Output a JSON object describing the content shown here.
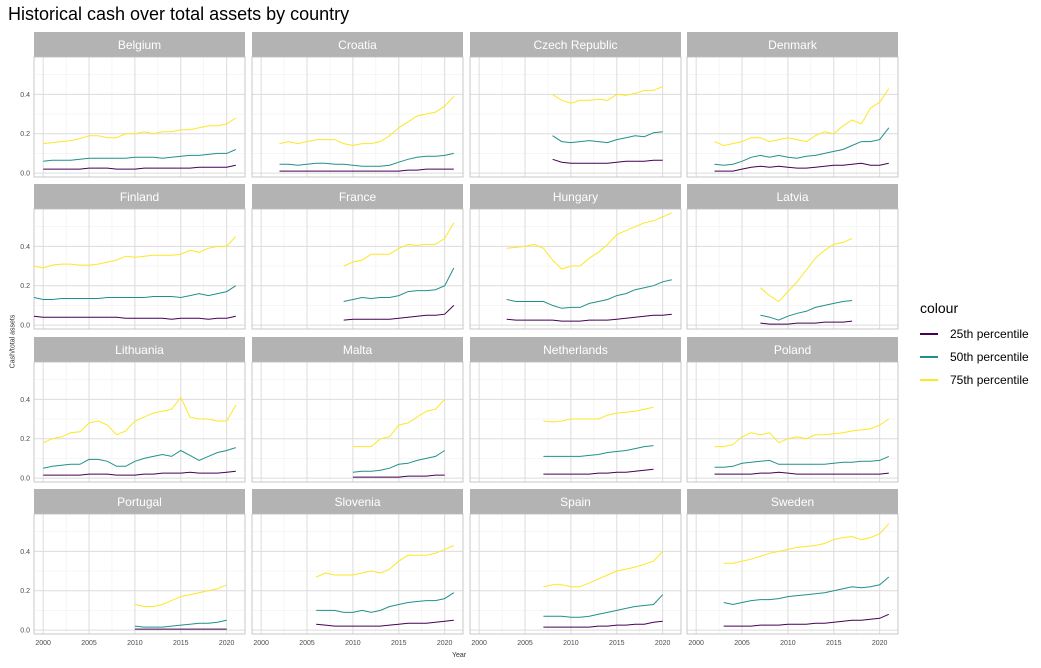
{
  "chart_data": {
    "type": "line",
    "title": "Historical cash over total assets by country",
    "xlabel": "Year",
    "ylabel": "Cash/total assets",
    "xlim": [
      1999,
      2022
    ],
    "ylim": [
      -0.02,
      0.59
    ],
    "x_ticks": [
      2000,
      2005,
      2010,
      2015,
      2020
    ],
    "y_ticks": [
      0.0,
      0.2,
      0.4
    ],
    "x_tick_labels": [
      "2000",
      "2005",
      "2010",
      "2015",
      "2020"
    ],
    "y_tick_labels": [
      "0.0",
      "0.2",
      "0.4"
    ],
    "grid": true,
    "legend": {
      "title": "colour",
      "position": "right",
      "entries": [
        {
          "label": "25th percentile",
          "color": "#440154"
        },
        {
          "label": "50th percentile",
          "color": "#21908C"
        },
        {
          "label": "75th percentile",
          "color": "#FDE725"
        }
      ]
    },
    "panels": [
      {
        "name": "Belgium",
        "start": 2000,
        "p25": [
          0.02,
          0.02,
          0.02,
          0.02,
          0.02,
          0.025,
          0.025,
          0.025,
          0.02,
          0.02,
          0.02,
          0.025,
          0.025,
          0.025,
          0.025,
          0.025,
          0.025,
          0.03,
          0.03,
          0.03,
          0.03,
          0.04
        ],
        "p50": [
          0.06,
          0.065,
          0.065,
          0.065,
          0.07,
          0.075,
          0.075,
          0.075,
          0.075,
          0.075,
          0.08,
          0.08,
          0.08,
          0.075,
          0.08,
          0.085,
          0.09,
          0.09,
          0.095,
          0.1,
          0.1,
          0.12
        ],
        "p75": [
          0.15,
          0.155,
          0.16,
          0.165,
          0.175,
          0.19,
          0.19,
          0.18,
          0.18,
          0.2,
          0.2,
          0.21,
          0.2,
          0.21,
          0.21,
          0.22,
          0.22,
          0.23,
          0.24,
          0.24,
          0.25,
          0.28
        ]
      },
      {
        "name": "Croatia",
        "start": 2002,
        "p25": [
          0.01,
          0.01,
          0.01,
          0.01,
          0.01,
          0.01,
          0.01,
          0.01,
          0.01,
          0.01,
          0.01,
          0.01,
          0.01,
          0.01,
          0.015,
          0.015,
          0.02,
          0.02,
          0.02,
          0.02
        ],
        "p50": [
          0.045,
          0.045,
          0.04,
          0.045,
          0.05,
          0.05,
          0.045,
          0.045,
          0.04,
          0.035,
          0.035,
          0.035,
          0.04,
          0.055,
          0.07,
          0.08,
          0.085,
          0.085,
          0.09,
          0.1
        ],
        "p75": [
          0.15,
          0.16,
          0.15,
          0.16,
          0.17,
          0.17,
          0.17,
          0.15,
          0.14,
          0.15,
          0.15,
          0.16,
          0.19,
          0.23,
          0.26,
          0.29,
          0.3,
          0.31,
          0.34,
          0.39
        ]
      },
      {
        "name": "Czech Republic",
        "start": 2008,
        "p25": [
          0.07,
          0.055,
          0.05,
          0.05,
          0.05,
          0.05,
          0.05,
          0.055,
          0.06,
          0.06,
          0.06,
          0.065,
          0.065
        ],
        "p50": [
          0.19,
          0.16,
          0.155,
          0.16,
          0.165,
          0.16,
          0.155,
          0.17,
          0.18,
          0.19,
          0.185,
          0.205,
          0.21
        ],
        "p75": [
          0.4,
          0.37,
          0.355,
          0.37,
          0.37,
          0.375,
          0.37,
          0.4,
          0.395,
          0.405,
          0.42,
          0.42,
          0.44
        ]
      },
      {
        "name": "Denmark",
        "start": 2002,
        "p25": [
          0.01,
          0.01,
          0.01,
          0.02,
          0.03,
          0.035,
          0.03,
          0.035,
          0.03,
          0.025,
          0.025,
          0.03,
          0.035,
          0.04,
          0.04,
          0.045,
          0.05,
          0.04,
          0.04,
          0.05
        ],
        "p50": [
          0.045,
          0.04,
          0.045,
          0.06,
          0.08,
          0.09,
          0.08,
          0.09,
          0.08,
          0.075,
          0.085,
          0.09,
          0.1,
          0.11,
          0.12,
          0.14,
          0.16,
          0.16,
          0.17,
          0.23
        ],
        "p75": [
          0.16,
          0.14,
          0.15,
          0.16,
          0.18,
          0.18,
          0.16,
          0.17,
          0.18,
          0.17,
          0.16,
          0.19,
          0.21,
          0.2,
          0.24,
          0.27,
          0.25,
          0.33,
          0.36,
          0.43
        ]
      },
      {
        "name": "Finland",
        "start": 1999,
        "p25": [
          0.045,
          0.04,
          0.04,
          0.04,
          0.04,
          0.04,
          0.04,
          0.04,
          0.04,
          0.04,
          0.035,
          0.035,
          0.035,
          0.035,
          0.035,
          0.03,
          0.035,
          0.035,
          0.035,
          0.03,
          0.035,
          0.035,
          0.045
        ],
        "p50": [
          0.14,
          0.13,
          0.13,
          0.135,
          0.135,
          0.135,
          0.135,
          0.135,
          0.14,
          0.14,
          0.14,
          0.14,
          0.14,
          0.145,
          0.145,
          0.145,
          0.14,
          0.15,
          0.16,
          0.15,
          0.16,
          0.17,
          0.2
        ],
        "p75": [
          0.3,
          0.29,
          0.305,
          0.31,
          0.31,
          0.305,
          0.305,
          0.31,
          0.32,
          0.33,
          0.35,
          0.345,
          0.35,
          0.355,
          0.355,
          0.355,
          0.36,
          0.38,
          0.37,
          0.39,
          0.4,
          0.4,
          0.45
        ]
      },
      {
        "name": "France",
        "start": 2009,
        "p25": [
          0.025,
          0.03,
          0.03,
          0.03,
          0.03,
          0.03,
          0.035,
          0.04,
          0.045,
          0.05,
          0.05,
          0.055,
          0.1
        ],
        "p50": [
          0.12,
          0.13,
          0.14,
          0.135,
          0.14,
          0.14,
          0.15,
          0.17,
          0.175,
          0.175,
          0.18,
          0.2,
          0.29
        ],
        "p75": [
          0.3,
          0.32,
          0.33,
          0.36,
          0.36,
          0.36,
          0.39,
          0.41,
          0.405,
          0.41,
          0.41,
          0.44,
          0.52
        ]
      },
      {
        "name": "Hungary",
        "start": 2003,
        "p25": [
          0.03,
          0.025,
          0.025,
          0.025,
          0.025,
          0.025,
          0.02,
          0.02,
          0.02,
          0.025,
          0.025,
          0.025,
          0.03,
          0.035,
          0.04,
          0.045,
          0.05,
          0.05,
          0.055
        ],
        "p50": [
          0.13,
          0.12,
          0.12,
          0.12,
          0.12,
          0.1,
          0.085,
          0.09,
          0.09,
          0.11,
          0.12,
          0.13,
          0.15,
          0.16,
          0.18,
          0.19,
          0.2,
          0.22,
          0.23
        ],
        "p75": [
          0.39,
          0.395,
          0.4,
          0.41,
          0.39,
          0.33,
          0.285,
          0.3,
          0.3,
          0.34,
          0.37,
          0.41,
          0.46,
          0.48,
          0.5,
          0.52,
          0.53,
          0.55,
          0.57
        ]
      },
      {
        "name": "Latvia",
        "start": 2007,
        "p25": [
          0.01,
          0.005,
          0.005,
          0.005,
          0.01,
          0.01,
          0.01,
          0.015,
          0.015,
          0.015,
          0.02
        ],
        "p50": [
          0.05,
          0.04,
          0.025,
          0.045,
          0.06,
          0.07,
          0.09,
          0.1,
          0.11,
          0.12,
          0.125
        ],
        "p75": [
          0.19,
          0.15,
          0.12,
          0.17,
          0.22,
          0.28,
          0.34,
          0.38,
          0.41,
          0.42,
          0.44
        ]
      },
      {
        "name": "Lithuania",
        "start": 2000,
        "p25": [
          0.015,
          0.015,
          0.015,
          0.015,
          0.015,
          0.02,
          0.02,
          0.02,
          0.015,
          0.015,
          0.015,
          0.02,
          0.02,
          0.025,
          0.025,
          0.025,
          0.03,
          0.025,
          0.025,
          0.025,
          0.03,
          0.035
        ],
        "p50": [
          0.05,
          0.06,
          0.065,
          0.07,
          0.07,
          0.095,
          0.095,
          0.085,
          0.06,
          0.06,
          0.085,
          0.1,
          0.11,
          0.12,
          0.11,
          0.14,
          0.115,
          0.09,
          0.11,
          0.13,
          0.14,
          0.155
        ],
        "p75": [
          0.18,
          0.2,
          0.21,
          0.23,
          0.235,
          0.28,
          0.29,
          0.27,
          0.22,
          0.24,
          0.29,
          0.31,
          0.33,
          0.34,
          0.35,
          0.41,
          0.31,
          0.3,
          0.3,
          0.29,
          0.29,
          0.37
        ]
      },
      {
        "name": "Malta",
        "start": 2010,
        "p25": [
          0.005,
          0.005,
          0.005,
          0.005,
          0.005,
          0.005,
          0.01,
          0.01,
          0.01,
          0.015,
          0.015
        ],
        "p50": [
          0.03,
          0.035,
          0.035,
          0.04,
          0.05,
          0.07,
          0.075,
          0.09,
          0.1,
          0.11,
          0.14
        ],
        "p75": [
          0.16,
          0.16,
          0.16,
          0.2,
          0.21,
          0.27,
          0.28,
          0.31,
          0.34,
          0.35,
          0.4
        ]
      },
      {
        "name": "Netherlands",
        "start": 2007,
        "p25": [
          0.02,
          0.02,
          0.02,
          0.02,
          0.02,
          0.02,
          0.025,
          0.025,
          0.03,
          0.03,
          0.035,
          0.04,
          0.045
        ],
        "p50": [
          0.11,
          0.11,
          0.11,
          0.11,
          0.11,
          0.115,
          0.12,
          0.13,
          0.135,
          0.14,
          0.15,
          0.16,
          0.165
        ],
        "p75": [
          0.29,
          0.285,
          0.29,
          0.3,
          0.3,
          0.3,
          0.3,
          0.32,
          0.33,
          0.335,
          0.34,
          0.35,
          0.36
        ]
      },
      {
        "name": "Poland",
        "start": 2002,
        "p25": [
          0.02,
          0.02,
          0.02,
          0.02,
          0.02,
          0.025,
          0.025,
          0.03,
          0.025,
          0.02,
          0.02,
          0.02,
          0.02,
          0.02,
          0.02,
          0.02,
          0.02,
          0.02,
          0.02,
          0.025
        ],
        "p50": [
          0.055,
          0.055,
          0.06,
          0.075,
          0.08,
          0.085,
          0.09,
          0.07,
          0.07,
          0.07,
          0.07,
          0.07,
          0.07,
          0.075,
          0.08,
          0.08,
          0.085,
          0.085,
          0.09,
          0.11
        ],
        "p75": [
          0.16,
          0.16,
          0.17,
          0.21,
          0.23,
          0.22,
          0.23,
          0.18,
          0.2,
          0.21,
          0.2,
          0.22,
          0.22,
          0.225,
          0.23,
          0.24,
          0.245,
          0.25,
          0.27,
          0.3
        ]
      },
      {
        "name": "Portugal",
        "start": 2010,
        "p25": [
          0.005,
          0.005,
          0.005,
          0.005,
          0.005,
          0.005,
          0.005,
          0.005,
          0.005,
          0.005,
          0.005
        ],
        "p50": [
          0.02,
          0.015,
          0.015,
          0.015,
          0.02,
          0.025,
          0.03,
          0.035,
          0.035,
          0.04,
          0.05
        ],
        "p75": [
          0.13,
          0.12,
          0.12,
          0.13,
          0.15,
          0.17,
          0.18,
          0.19,
          0.2,
          0.21,
          0.23
        ]
      },
      {
        "name": "Slovenia",
        "start": 2006,
        "p25": [
          0.03,
          0.025,
          0.02,
          0.02,
          0.02,
          0.02,
          0.02,
          0.02,
          0.025,
          0.03,
          0.035,
          0.035,
          0.035,
          0.04,
          0.045,
          0.05
        ],
        "p50": [
          0.1,
          0.1,
          0.1,
          0.09,
          0.09,
          0.1,
          0.09,
          0.1,
          0.12,
          0.13,
          0.14,
          0.145,
          0.15,
          0.15,
          0.16,
          0.19
        ],
        "p75": [
          0.27,
          0.29,
          0.28,
          0.28,
          0.28,
          0.29,
          0.3,
          0.29,
          0.31,
          0.35,
          0.38,
          0.38,
          0.38,
          0.39,
          0.41,
          0.43
        ]
      },
      {
        "name": "Spain",
        "start": 2007,
        "p25": [
          0.015,
          0.015,
          0.015,
          0.015,
          0.015,
          0.015,
          0.02,
          0.02,
          0.025,
          0.025,
          0.03,
          0.03,
          0.04,
          0.045
        ],
        "p50": [
          0.07,
          0.07,
          0.07,
          0.065,
          0.065,
          0.07,
          0.08,
          0.09,
          0.1,
          0.11,
          0.12,
          0.125,
          0.13,
          0.18
        ],
        "p75": [
          0.22,
          0.23,
          0.23,
          0.22,
          0.22,
          0.24,
          0.26,
          0.28,
          0.3,
          0.31,
          0.32,
          0.335,
          0.35,
          0.4
        ]
      },
      {
        "name": "Sweden",
        "start": 2003,
        "p25": [
          0.02,
          0.02,
          0.02,
          0.02,
          0.025,
          0.025,
          0.025,
          0.03,
          0.03,
          0.03,
          0.035,
          0.035,
          0.04,
          0.045,
          0.05,
          0.05,
          0.055,
          0.06,
          0.08
        ],
        "p50": [
          0.14,
          0.13,
          0.14,
          0.15,
          0.155,
          0.155,
          0.16,
          0.17,
          0.175,
          0.18,
          0.185,
          0.19,
          0.2,
          0.21,
          0.22,
          0.215,
          0.22,
          0.23,
          0.27
        ],
        "p75": [
          0.34,
          0.34,
          0.35,
          0.36,
          0.375,
          0.39,
          0.4,
          0.41,
          0.42,
          0.425,
          0.43,
          0.44,
          0.46,
          0.47,
          0.475,
          0.46,
          0.47,
          0.49,
          0.54
        ]
      }
    ]
  }
}
